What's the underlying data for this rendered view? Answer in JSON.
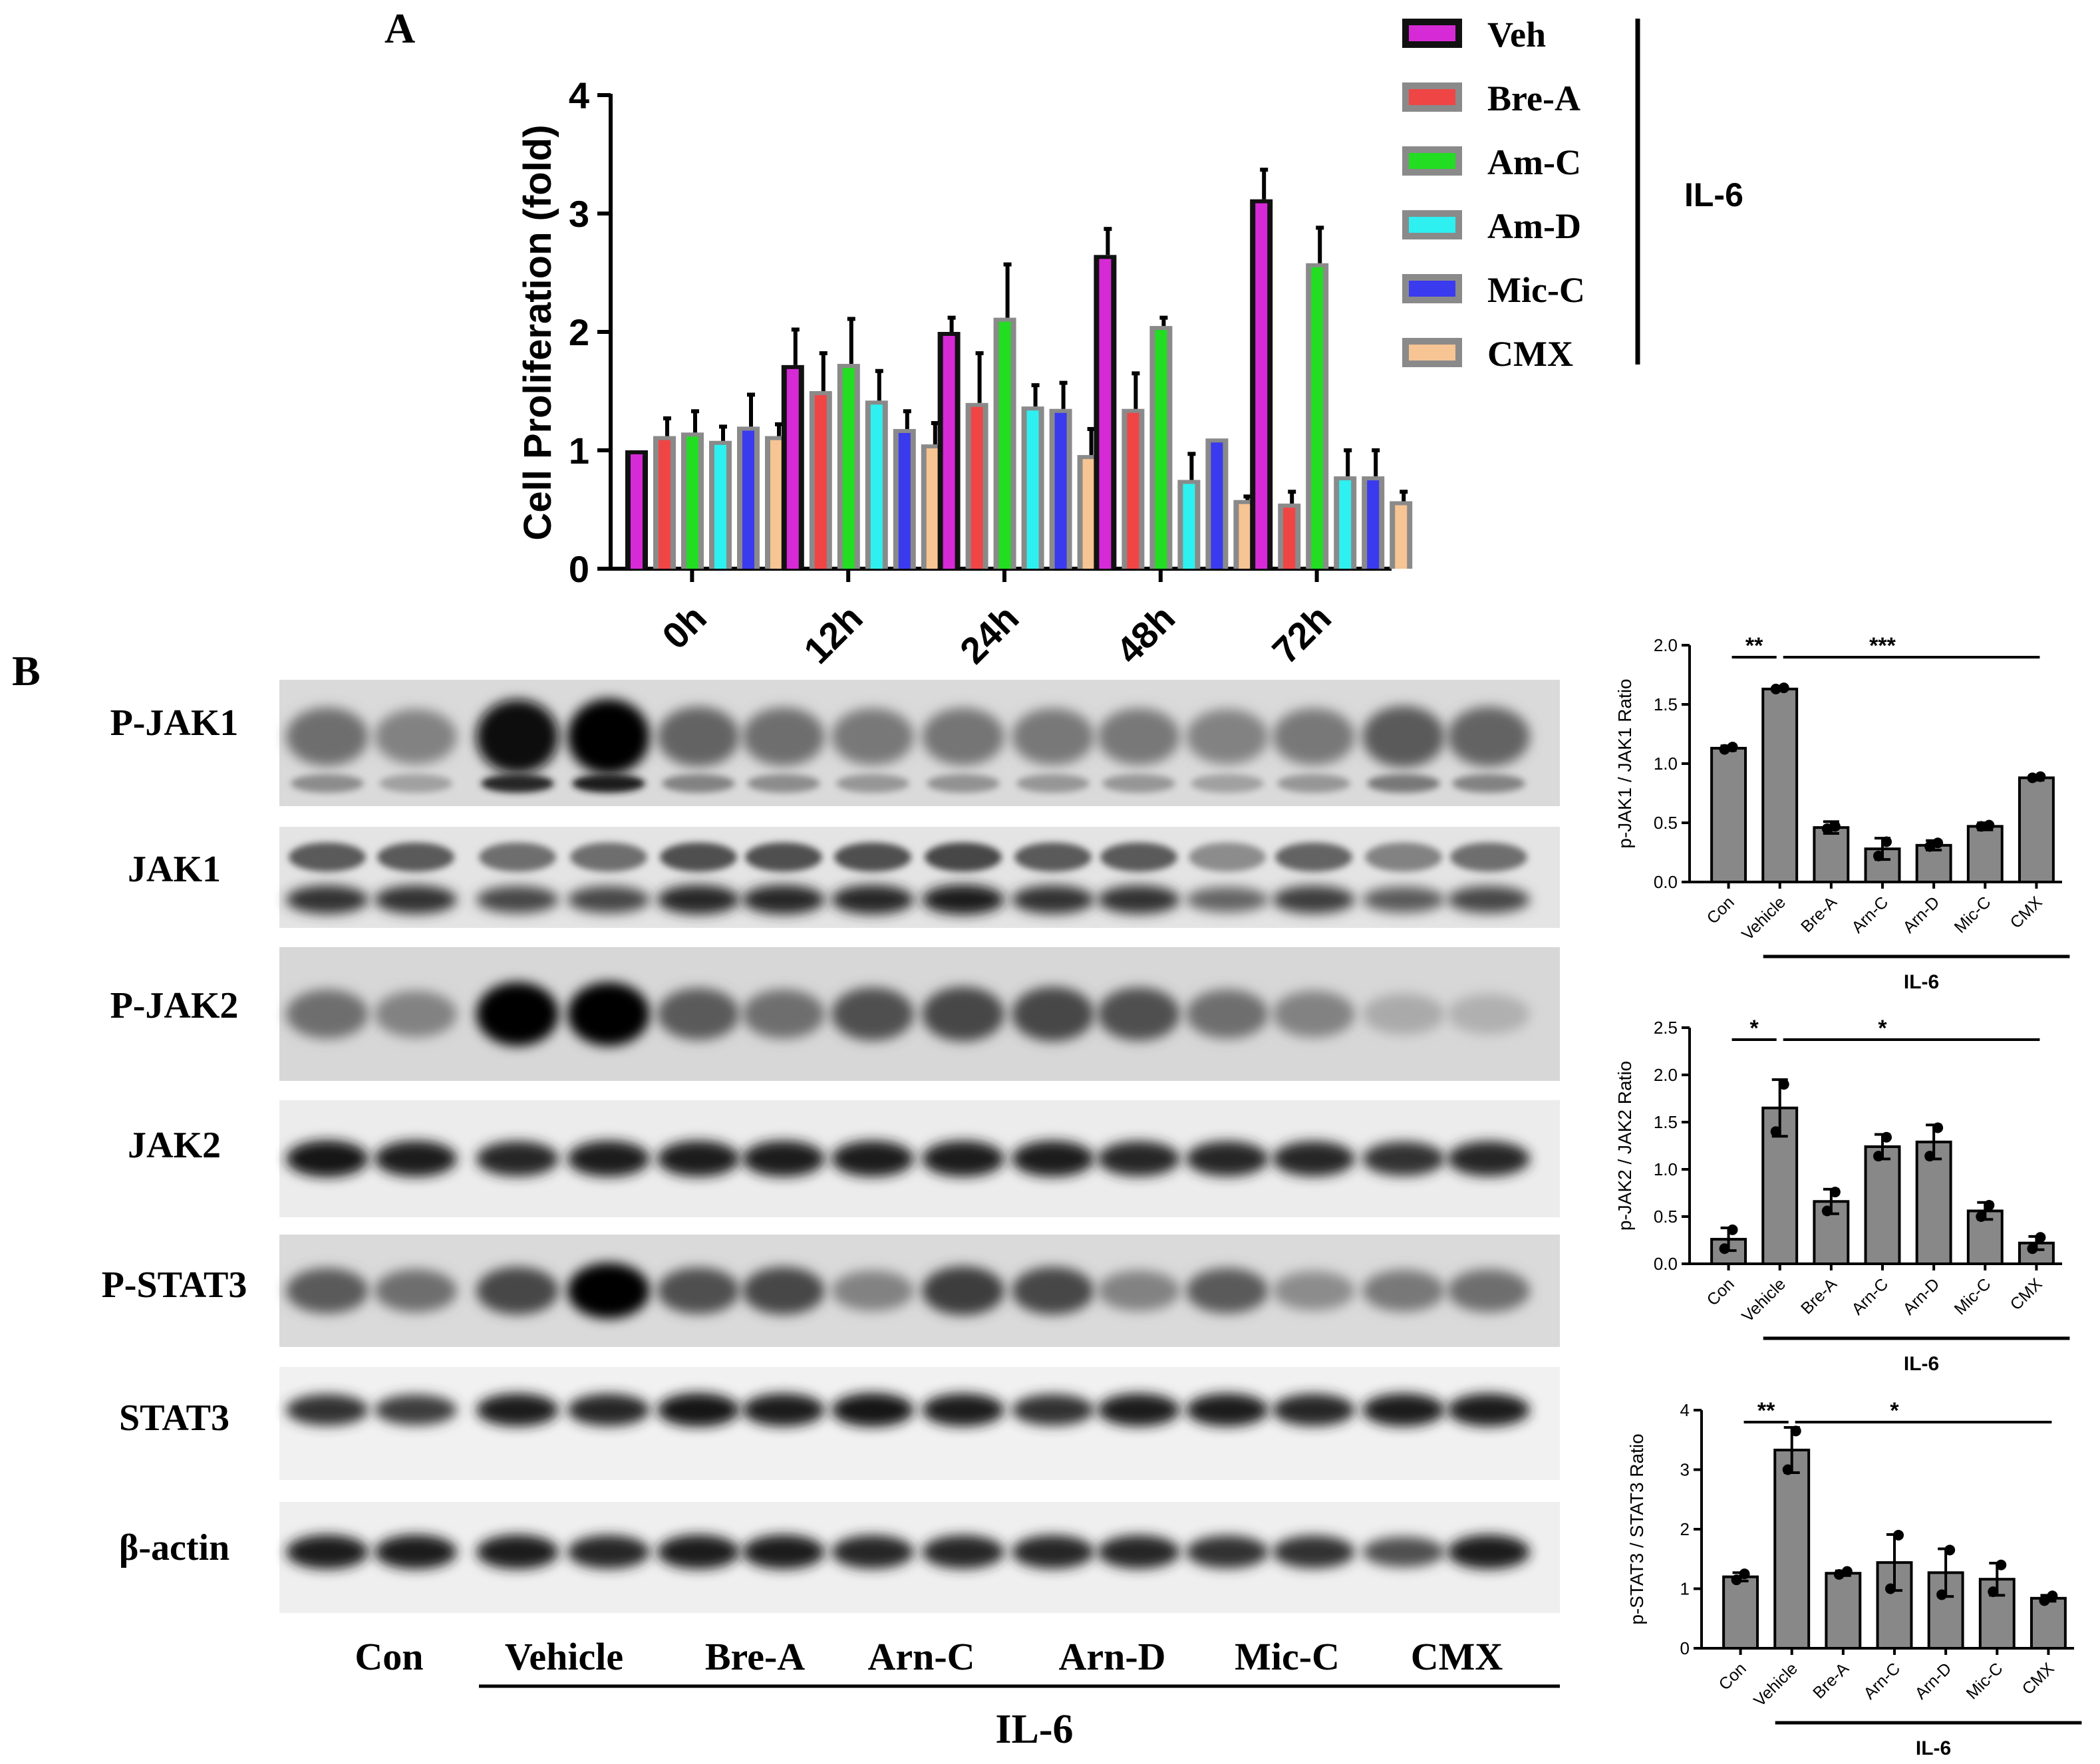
{
  "panel_labels": {
    "a": "A",
    "b": "B"
  },
  "chart_data": [
    {
      "type": "bar",
      "title": "",
      "xlabel": "",
      "ylabel": "Cell Proliferation (fold)",
      "ylim": [
        0,
        4
      ],
      "yticks": [
        "0",
        "1",
        "2",
        "3",
        "4"
      ],
      "categories": [
        "0h",
        "12h",
        "24h",
        "48h",
        "72h"
      ],
      "legend_position": "top-right",
      "legend_group": "IL-6",
      "series": [
        {
          "name": "Veh",
          "color": "#d62ad6",
          "values": [
            1.0,
            1.72,
            2.0,
            2.65,
            3.12
          ],
          "errors": [
            0.0,
            0.3,
            0.12,
            0.22,
            0.25
          ]
        },
        {
          "name": "Bre-A",
          "color": "#f04545",
          "values": [
            1.12,
            1.5,
            1.4,
            1.35,
            0.55
          ],
          "errors": [
            0.15,
            0.32,
            0.42,
            0.3,
            0.1
          ]
        },
        {
          "name": "Am-C",
          "color": "#22dd22",
          "values": [
            1.15,
            1.73,
            2.12,
            2.05,
            2.58
          ],
          "errors": [
            0.18,
            0.38,
            0.45,
            0.07,
            0.3
          ]
        },
        {
          "name": "Am-D",
          "color": "#2ef0f0",
          "values": [
            1.08,
            1.42,
            1.37,
            0.75,
            0.78
          ],
          "errors": [
            0.12,
            0.25,
            0.18,
            0.22,
            0.22
          ]
        },
        {
          "name": "Mic-C",
          "color": "#3a3aee",
          "values": [
            1.2,
            1.18,
            1.35,
            1.1,
            0.78
          ],
          "errors": [
            0.27,
            0.15,
            0.22,
            0.0,
            0.22
          ]
        },
        {
          "name": "CMX",
          "color": "#f7c493",
          "values": [
            1.12,
            1.05,
            0.96,
            0.58,
            0.57
          ],
          "errors": [
            0.1,
            0.18,
            0.22,
            0.03,
            0.08
          ]
        }
      ]
    },
    {
      "type": "bar",
      "title": "",
      "ylabel": "p-JAK1 / JAK1 Ratio",
      "ylim": [
        0,
        2.0
      ],
      "yticks": [
        "0.0",
        "0.5",
        "1.0",
        "1.5",
        "2.0"
      ],
      "categories": [
        "Con",
        "Vehicle",
        "Bre-A",
        "Arn-C",
        "Arn-D",
        "Mic-C",
        "CMX"
      ],
      "values": [
        1.13,
        1.63,
        0.46,
        0.28,
        0.31,
        0.47,
        0.88
      ],
      "errors": [
        0.02,
        0.01,
        0.05,
        0.09,
        0.04,
        0.03,
        0.02
      ],
      "points": [
        [
          1.12,
          1.14
        ],
        [
          1.63,
          1.64
        ],
        [
          0.45,
          0.47
        ],
        [
          0.22,
          0.34
        ],
        [
          0.3,
          0.33
        ],
        [
          0.47,
          0.48
        ],
        [
          0.88,
          0.89
        ]
      ],
      "group_label": "IL-6",
      "sig": [
        {
          "text": "**"
        },
        {
          "text": "***"
        }
      ]
    },
    {
      "type": "bar",
      "title": "",
      "ylabel": "p-JAK2 / JAK2 Ratio",
      "ylim": [
        0,
        2.5
      ],
      "yticks": [
        "0.0",
        "0.5",
        "1.0",
        "1.5",
        "2.0",
        "2.5"
      ],
      "categories": [
        "Con",
        "Vehicle",
        "Bre-A",
        "Arn-C",
        "Arn-D",
        "Mic-C",
        "CMX"
      ],
      "values": [
        0.26,
        1.65,
        0.66,
        1.24,
        1.29,
        0.56,
        0.22
      ],
      "errors": [
        0.12,
        0.3,
        0.13,
        0.13,
        0.18,
        0.09,
        0.07
      ],
      "points": [
        [
          0.16,
          0.36
        ],
        [
          1.4,
          1.9
        ],
        [
          0.56,
          0.76
        ],
        [
          1.14,
          1.34
        ],
        [
          1.14,
          1.44
        ],
        [
          0.5,
          0.62
        ],
        [
          0.16,
          0.28
        ]
      ],
      "group_label": "IL-6",
      "sig": [
        {
          "text": "*"
        },
        {
          "text": "*"
        }
      ]
    },
    {
      "type": "bar",
      "title": "",
      "ylabel": "p-STAT3 / STAT3 Ratio",
      "ylim": [
        0,
        4
      ],
      "yticks": [
        "0",
        "1",
        "2",
        "3",
        "4"
      ],
      "categories": [
        "Con",
        "Vehicle",
        "Bre-A",
        "Arn-C",
        "Arn-D",
        "Mic-C",
        "CMX"
      ],
      "values": [
        1.2,
        3.33,
        1.26,
        1.44,
        1.27,
        1.16,
        0.84
      ],
      "errors": [
        0.07,
        0.38,
        0.04,
        0.47,
        0.4,
        0.27,
        0.05
      ],
      "points": [
        [
          1.15,
          1.25
        ],
        [
          3.0,
          3.65
        ],
        [
          1.24,
          1.29
        ],
        [
          1.0,
          1.9
        ],
        [
          0.9,
          1.65
        ],
        [
          0.95,
          1.4
        ],
        [
          0.8,
          0.88
        ]
      ],
      "group_label": "IL-6",
      "sig": [
        {
          "text": "**"
        },
        {
          "text": "*"
        }
      ]
    }
  ],
  "blot": {
    "rows": [
      "P-JAK1",
      "JAK1",
      "P-JAK2",
      "JAK2",
      "P-STAT3",
      "STAT3",
      "β-actin"
    ],
    "groups": [
      "Con",
      "Vehicle",
      "Bre-A",
      "Arn-C",
      "Arn-D",
      "Mic-C",
      "CMX"
    ],
    "bracket_label": "IL-6"
  }
}
